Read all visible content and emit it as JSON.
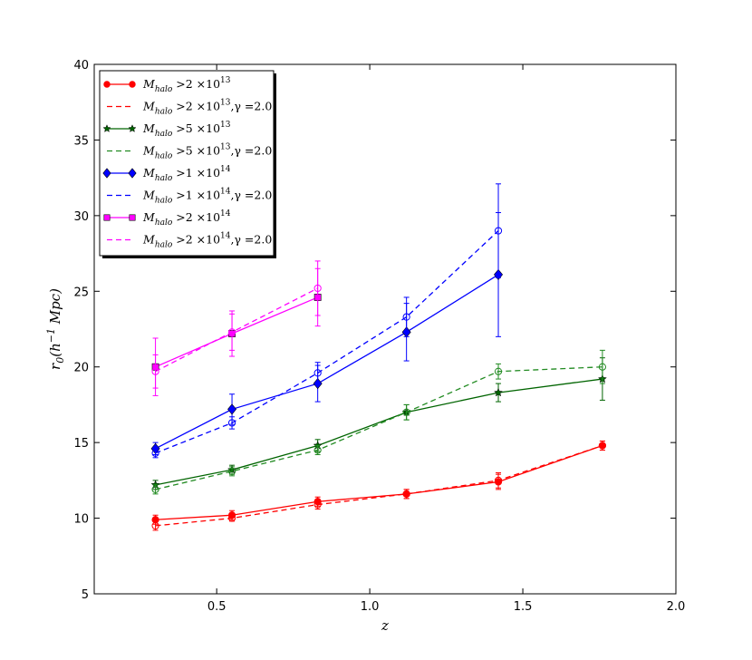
{
  "chart_data": {
    "type": "line",
    "xlabel": "z",
    "ylabel": "r_0(h^{-1} Mpc)",
    "xlim": [
      0.1,
      2.0
    ],
    "ylim": [
      5,
      40
    ],
    "xticks": [
      0.5,
      1.0,
      1.5,
      2.0
    ],
    "xtick_labels": [
      "0.5",
      "1.0",
      "1.5",
      "2.0"
    ],
    "yticks": [
      5,
      10,
      15,
      20,
      25,
      30,
      35,
      40
    ],
    "ytick_labels": [
      "5",
      "10",
      "15",
      "20",
      "25",
      "30",
      "35",
      "40"
    ],
    "grid": false,
    "legend_position": "top-left",
    "series": [
      {
        "name": "M_halo > 2×10^13",
        "label_parts": {
          "m": "M",
          "sub": "halo",
          "rel": " >2 ×10",
          "sup": "13",
          "tail": ""
        },
        "color": "#ff0000",
        "style": "solid",
        "marker": "circle-filled",
        "x": [
          0.3,
          0.55,
          0.83,
          1.12,
          1.42,
          1.76
        ],
        "y": [
          9.9,
          10.2,
          11.1,
          11.6,
          12.4,
          14.8
        ],
        "err": [
          0.3,
          0.3,
          0.3,
          0.3,
          0.5,
          0.3
        ]
      },
      {
        "name": "M_halo > 2×10^13, γ=2.0",
        "label_parts": {
          "m": "M",
          "sub": "halo",
          "rel": " >2 ×10",
          "sup": "13",
          "tail": ",γ =2.0"
        },
        "color": "#ff0000",
        "style": "dashed",
        "marker": "circle-open",
        "x": [
          0.3,
          0.55,
          0.83,
          1.12,
          1.42,
          1.76
        ],
        "y": [
          9.5,
          10.0,
          10.9,
          11.6,
          12.5,
          14.8
        ],
        "err": [
          0.3,
          0.2,
          0.3,
          0.3,
          0.5,
          0.3
        ]
      },
      {
        "name": "M_halo > 5×10^13",
        "label_parts": {
          "m": "M",
          "sub": "halo",
          "rel": " >5 ×10",
          "sup": "13",
          "tail": ""
        },
        "color": "#006400",
        "style": "solid",
        "marker": "star",
        "x": [
          0.3,
          0.55,
          0.83,
          1.12,
          1.42,
          1.76
        ],
        "y": [
          12.2,
          13.2,
          14.8,
          17.0,
          18.3,
          19.2
        ],
        "err": [
          0.3,
          0.3,
          0.4,
          0.5,
          0.6,
          1.4
        ]
      },
      {
        "name": "M_halo > 5×10^13, γ=2.0",
        "label_parts": {
          "m": "M",
          "sub": "halo",
          "rel": " >5 ×10",
          "sup": "13",
          "tail": ",γ =2.0"
        },
        "color": "#228b22",
        "style": "dashed",
        "marker": "circle-open",
        "x": [
          0.3,
          0.55,
          0.83,
          1.12,
          1.42,
          1.76
        ],
        "y": [
          11.9,
          13.1,
          14.5,
          17.0,
          19.7,
          20.0
        ],
        "err": [
          0.3,
          0.3,
          0.3,
          0.5,
          0.5,
          1.1
        ]
      },
      {
        "name": "M_halo > 1×10^14",
        "label_parts": {
          "m": "M",
          "sub": "halo",
          "rel": " >1 ×10",
          "sup": "14",
          "tail": ""
        },
        "color": "#0000ff",
        "style": "solid",
        "marker": "diamond",
        "x": [
          0.3,
          0.55,
          0.83,
          1.12,
          1.42
        ],
        "y": [
          14.6,
          17.2,
          18.9,
          22.3,
          26.1
        ],
        "err": [
          0.4,
          1.0,
          1.2,
          1.9,
          4.1
        ]
      },
      {
        "name": "M_halo > 1×10^14, γ=2.0",
        "label_parts": {
          "m": "M",
          "sub": "halo",
          "rel": " >1 ×10",
          "sup": "14",
          "tail": ",γ =2.0"
        },
        "color": "#0000ff",
        "style": "dashed",
        "marker": "circle-open",
        "x": [
          0.3,
          0.55,
          0.83,
          1.12,
          1.42
        ],
        "y": [
          14.3,
          16.3,
          19.6,
          23.3,
          29.0
        ],
        "err": [
          0.3,
          0.4,
          0.7,
          1.3,
          3.1
        ]
      },
      {
        "name": "M_halo > 2×10^14",
        "label_parts": {
          "m": "M",
          "sub": "halo",
          "rel": " >2 ×10",
          "sup": "14",
          "tail": ""
        },
        "color": "#ff00ff",
        "style": "solid",
        "marker": "square",
        "x": [
          0.3,
          0.55,
          0.83
        ],
        "y": [
          20.0,
          22.2,
          24.6
        ],
        "err": [
          1.9,
          1.5,
          1.9
        ]
      },
      {
        "name": "M_halo > 2×10^14, γ=2.0",
        "label_parts": {
          "m": "M",
          "sub": "halo",
          "rel": " >2 ×10",
          "sup": "14",
          "tail": ",γ =2.0"
        },
        "color": "#ff00ff",
        "style": "dashed",
        "marker": "circle-open",
        "x": [
          0.3,
          0.55,
          0.83
        ],
        "y": [
          19.7,
          22.3,
          25.2
        ],
        "err": [
          1.1,
          1.2,
          1.8
        ]
      }
    ]
  }
}
